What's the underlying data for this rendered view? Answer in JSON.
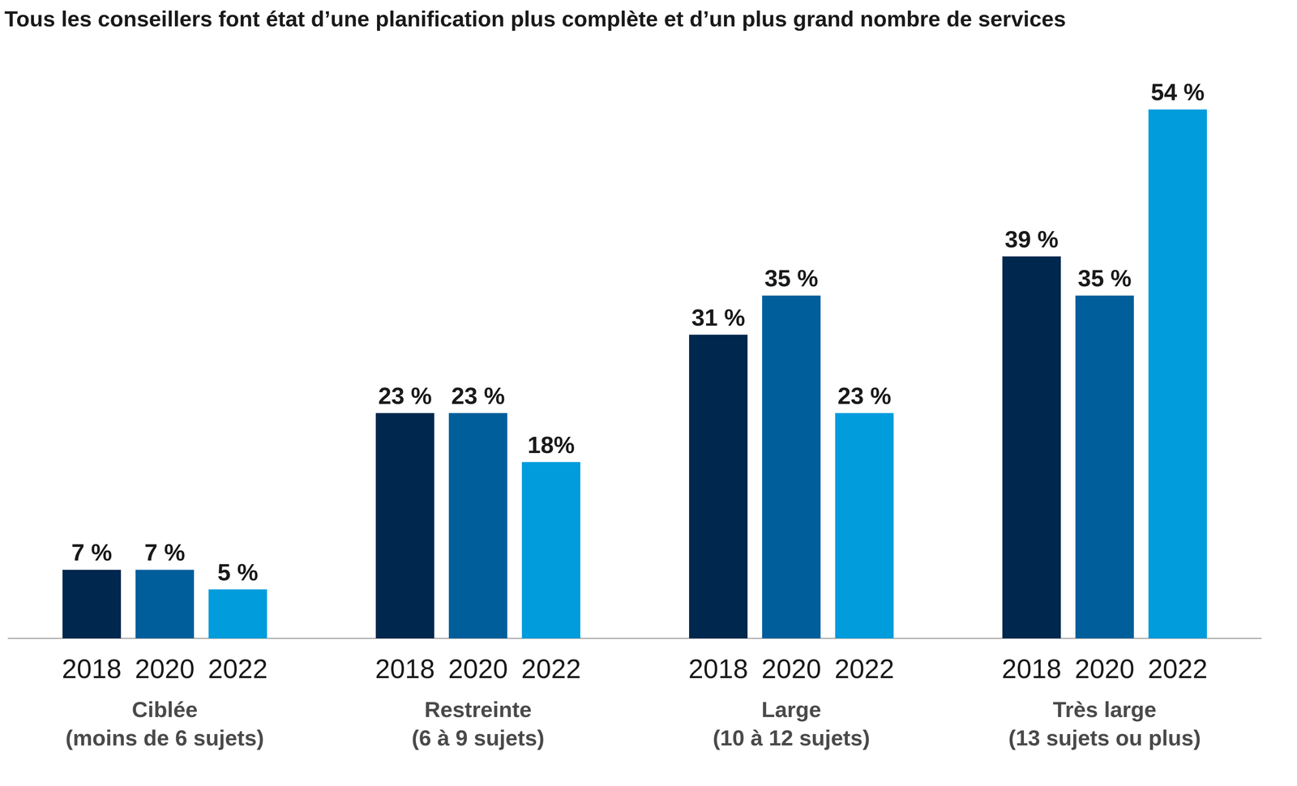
{
  "chart_data": {
    "type": "bar",
    "title": "Tous les conseillers font état d’une planification plus complète et d’un plus grand nombre de services",
    "categories": [
      "Ciblée\n(moins de 6 sujets)",
      "Restreinte\n(6 à 9 sujets)",
      "Large\n(10 à 12 sujets)",
      "Très large\n(13 sujets ou plus)"
    ],
    "series": [
      {
        "name": "2018",
        "color": "#00274d",
        "values": [
          7,
          23,
          31,
          39
        ],
        "value_labels": [
          "7 %",
          "23 %",
          "31 %",
          "39 %"
        ]
      },
      {
        "name": "2020",
        "color": "#005e9b",
        "values": [
          7,
          23,
          35,
          35
        ],
        "value_labels": [
          "7 %",
          "23 %",
          "35 %",
          "35 %"
        ]
      },
      {
        "name": "2022",
        "color": "#009cdc",
        "values": [
          5,
          18,
          23,
          54
        ],
        "value_labels": [
          "5 %",
          "18%",
          "23 %",
          "54 %"
        ]
      }
    ],
    "ylim": [
      0,
      60
    ],
    "yticks": [
      0,
      60
    ],
    "grid": false,
    "data_labels": true,
    "tick_labels": "x"
  }
}
